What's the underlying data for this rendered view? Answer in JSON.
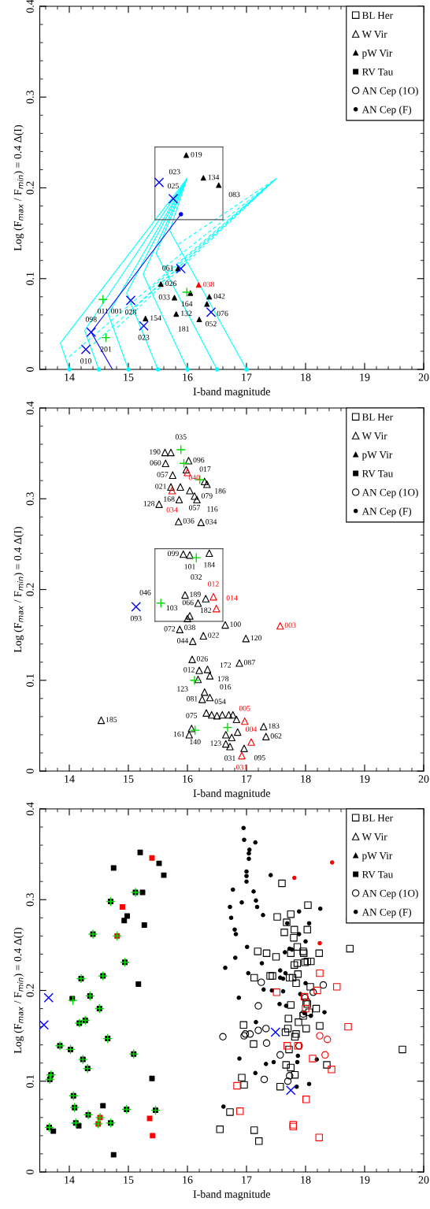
{
  "chart_data": [
    {
      "type": "scatter",
      "xlabel": "I-band magnitude",
      "ylabel": "Log (F$_{max}$ / F$_{min}$) = 0.4 Δ(I)",
      "xlim": [
        13.5,
        20
      ],
      "ylim": [
        0,
        0.4
      ],
      "xticks": [
        14,
        15,
        16,
        17,
        18,
        19,
        20
      ],
      "yticks": [
        0,
        0.1,
        0.2,
        0.3,
        0.4
      ],
      "legend": "top right",
      "series": [
        {
          "name": "BL Her",
          "marker": "square-open",
          "color": "#000000"
        },
        {
          "name": "W Vir",
          "marker": "triangle-open",
          "color": "#000000"
        },
        {
          "name": "pW Vir",
          "marker": "triangle",
          "color": "#000000",
          "x": [
            15.98,
            16.27,
            16.53,
            15.84,
            15.55,
            15.78,
            16.37,
            16.33,
            15.81,
            16.2,
            15.29,
            16.05
          ],
          "values": [
            0.236,
            0.211,
            0.203,
            0.111,
            0.094,
            0.079,
            0.08,
            0.072,
            0.061,
            0.055,
            0.056,
            0.084
          ]
        },
        {
          "name": "RV Tau",
          "marker": "square",
          "color": "#000000"
        },
        {
          "name": "AN Cep (1O)",
          "marker": "circle-open",
          "color": "#000000"
        },
        {
          "name": "AN Cep (F)",
          "marker": "circle",
          "color": "#000000"
        },
        {
          "type": "line",
          "color": "#00ffff",
          "line_style": "solid",
          "x": [
            14.0,
            13.85,
            15.99
          ],
          "values": [
            0,
            0.029,
            0.21
          ]
        },
        {
          "type": "line",
          "color": "#00ffff",
          "line_style": "solid",
          "x": [
            14.5,
            14.26,
            15.99
          ],
          "values": [
            0,
            0.043,
            0.21
          ]
        },
        {
          "type": "line",
          "color": "#00ffff",
          "line_style": "solid",
          "x": [
            15.0,
            14.66,
            15.99
          ],
          "values": [
            0,
            0.061,
            0.21
          ]
        },
        {
          "type": "line",
          "color": "#00ffff",
          "line_style": "solid",
          "x": [
            15.5,
            14.97,
            15.99
          ],
          "values": [
            0,
            0.084,
            0.21
          ]
        },
        {
          "type": "line",
          "color": "#00ffff",
          "line_style": "solid",
          "x": [
            16.0,
            15.25,
            15.99
          ],
          "values": [
            0,
            0.105,
            0.21
          ]
        },
        {
          "type": "line",
          "color": "#00ffff",
          "line_style": "solid",
          "x": [
            16.5,
            15.47,
            15.99
          ],
          "values": [
            0,
            0.128,
            0.21
          ]
        },
        {
          "type": "line",
          "color": "#00ffff",
          "line_style": "solid",
          "x": [
            17.0,
            15.7,
            15.99
          ],
          "values": [
            0,
            0.153,
            0.21
          ]
        },
        {
          "type": "line",
          "color": "#00ffff",
          "line_style": "dashed",
          "x": [
            14.0,
            17.5
          ],
          "values": [
            0.014,
            0.21
          ]
        },
        {
          "type": "line",
          "color": "#00ffff",
          "line_style": "dashed",
          "x": [
            14.41,
            17.5
          ],
          "values": [
            0.028,
            0.21
          ]
        },
        {
          "type": "line",
          "color": "#00ffff",
          "line_style": "dashed",
          "x": [
            14.81,
            17.5
          ],
          "values": [
            0.046,
            0.21
          ]
        },
        {
          "type": "line",
          "color": "#00ffff",
          "line_style": "dashed",
          "x": [
            15.12,
            17.5
          ],
          "values": [
            0.069,
            0.21
          ]
        },
        {
          "type": "line",
          "color": "#00ffff",
          "line_style": "dashed",
          "x": [
            15.4,
            17.5
          ],
          "values": [
            0.09,
            0.21
          ]
        },
        {
          "type": "line",
          "color": "#00ffff",
          "line_style": "dashed",
          "x": [
            15.62,
            17.5
          ],
          "values": [
            0.113,
            0.21
          ]
        },
        {
          "type": "line",
          "color": "#00ffff",
          "line_style": "dashed",
          "x": [
            15.85,
            17.5
          ],
          "values": [
            0.138,
            0.21
          ]
        },
        {
          "type": "scatter",
          "marker": "circle",
          "color": "#00ffff",
          "x": [
            14.0,
            14.5,
            15.0,
            15.5,
            16.0,
            16.5,
            17.0
          ],
          "values": [
            0,
            0,
            0,
            0,
            0,
            0,
            0
          ]
        },
        {
          "type": "line",
          "color": "#0000ff",
          "line_style": "solid",
          "x": [
            14.73,
            14.37,
            15.89
          ],
          "values": [
            0,
            0.041,
            0.171
          ]
        },
        {
          "type": "scatter",
          "marker": "circle",
          "color": "#0000ff",
          "x": [
            15.89
          ],
          "values": [
            0.171
          ]
        },
        {
          "type": "line",
          "color": "#555555",
          "line_style": "solid",
          "x": [
            15.45,
            16.6
          ],
          "values": [
            0.165,
            0.165
          ]
        },
        {
          "type": "line",
          "color": "#555555",
          "line_style": "solid",
          "x": [
            16.6,
            16.6
          ],
          "values": [
            0.165,
            0.245
          ]
        },
        {
          "type": "line",
          "color": "#555555",
          "line_style": "solid",
          "x": [
            16.6,
            15.45
          ],
          "values": [
            0.245,
            0.245
          ]
        },
        {
          "type": "line",
          "color": "#555555",
          "line_style": "solid",
          "x": [
            15.45,
            15.45
          ],
          "values": [
            0.245,
            0.165
          ]
        },
        {
          "marker": "triangle",
          "color": "#ff0000",
          "x": [
            16.19
          ],
          "values": [
            0.093
          ]
        },
        {
          "marker": "cross",
          "color": "#00dd00",
          "x": [
            15.99,
            14.57,
            14.62
          ],
          "values": [
            0.085,
            0.077,
            0.035
          ]
        },
        {
          "marker": "x",
          "color": "#0000ff",
          "x": [
            15.52,
            15.76,
            15.89,
            16.4,
            15.04,
            15.26,
            14.37,
            14.28
          ],
          "values": [
            0.206,
            0.188,
            0.111,
            0.063,
            0.076,
            0.048,
            0.041,
            0.022
          ]
        }
      ],
      "annotations": [
        {
          "text": "019",
          "x": 15.98,
          "y": 0.236
        },
        {
          "text": "134",
          "x": 16.27,
          "y": 0.211
        },
        {
          "text": "083",
          "x": 16.53,
          "y": 0.203
        },
        {
          "text": "023",
          "x": 15.52,
          "y": 0.206
        },
        {
          "text": "025",
          "x": 15.76,
          "y": 0.188
        },
        {
          "text": "061",
          "x": 15.84,
          "y": 0.111
        },
        {
          "text": "026",
          "x": 15.55,
          "y": 0.094
        },
        {
          "text": "038",
          "x": 16.19,
          "y": 0.093
        },
        {
          "text": "033",
          "x": 15.78,
          "y": 0.079
        },
        {
          "text": "164",
          "x": 15.99,
          "y": 0.085
        },
        {
          "text": "042",
          "x": 16.37,
          "y": 0.08
        },
        {
          "text": "076",
          "x": 16.33,
          "y": 0.072
        },
        {
          "text": "052",
          "x": 16.4,
          "y": 0.063
        },
        {
          "text": "132",
          "x": 15.81,
          "y": 0.061
        },
        {
          "text": "181",
          "x": 16.2,
          "y": 0.055
        },
        {
          "text": "154",
          "x": 15.29,
          "y": 0.056
        },
        {
          "text": "023",
          "x": 15.26,
          "y": 0.048
        },
        {
          "text": "028",
          "x": 15.04,
          "y": 0.076
        },
        {
          "text": "011",
          "x": 14.57,
          "y": 0.077
        },
        {
          "text": "001",
          "x": 14.8,
          "y": 0.077
        },
        {
          "text": "098",
          "x": 14.37,
          "y": 0.041
        },
        {
          "text": "201",
          "x": 14.62,
          "y": 0.035
        },
        {
          "text": "010",
          "x": 14.28,
          "y": 0.022
        }
      ]
    },
    {
      "type": "scatter",
      "xlabel": "I-band magnitude",
      "ylabel": "Log (F$_{max}$ / F$_{min}$) = 0.4 Δ(I)",
      "xlim": [
        13.5,
        20
      ],
      "ylim": [
        0,
        0.4
      ],
      "xticks": [
        14,
        15,
        16,
        17,
        18,
        19,
        20
      ],
      "yticks": [
        0,
        0.1,
        0.2,
        0.3,
        0.4
      ],
      "legend": "top right",
      "series": [
        {
          "name": "BL Her",
          "marker": "square-open",
          "color": "#000000"
        },
        {
          "name": "W Vir",
          "marker": "triangle-open",
          "color": "#000000",
          "x": [
            15.62,
            15.72,
            15.63,
            16.02,
            15.98,
            15.75,
            16.29,
            16.33,
            15.72,
            15.88,
            16.04,
            16.12,
            15.86,
            16.16,
            15.52,
            15.85,
            16.23,
            15.93,
            16.04,
            16.37,
            15.96,
            16.18,
            16.31,
            16.04,
            16.0,
            16.64,
            15.87,
            16.27,
            16.09,
            16.99,
            16.08,
            16.88,
            16.2,
            16.34,
            16.38,
            16.18,
            16.29,
            16.38,
            16.25,
            14.54,
            16.32,
            16.41,
            16.5,
            16.59,
            16.7,
            16.77,
            16.83,
            17.29,
            17.33,
            16.96,
            16.65,
            16.72,
            16.07,
            16.03,
            16.65,
            16.75,
            16.85
          ],
          "values": [
            0.351,
            0.351,
            0.339,
            0.342,
            0.332,
            0.326,
            0.319,
            0.316,
            0.313,
            0.313,
            0.309,
            0.303,
            0.299,
            0.299,
            0.294,
            0.275,
            0.274,
            0.239,
            0.238,
            0.24,
            0.194,
            0.185,
            0.19,
            0.171,
            0.168,
            0.161,
            0.156,
            0.149,
            0.143,
            0.146,
            0.123,
            0.119,
            0.111,
            0.112,
            0.105,
            0.101,
            0.087,
            0.081,
            0.079,
            0.056,
            0.064,
            0.062,
            0.061,
            0.062,
            0.062,
            0.062,
            0.057,
            0.049,
            0.038,
            0.025,
            0.03,
            0.027,
            0.047,
            0.04,
            0.04,
            0.037,
            0.043
          ]
        },
        {
          "name": "pW Vir",
          "marker": "triangle",
          "color": "#000000"
        },
        {
          "name": "RV Tau",
          "marker": "square",
          "color": "#000000"
        },
        {
          "name": "AN Cep (1O)",
          "marker": "circle-open",
          "color": "#000000"
        },
        {
          "name": "AN Cep (F)",
          "marker": "circle",
          "color": "#000000"
        },
        {
          "type": "line",
          "color": "#555555",
          "line_style": "solid",
          "x": [
            15.45,
            16.6
          ],
          "values": [
            0.165,
            0.165
          ]
        },
        {
          "type": "line",
          "color": "#555555",
          "line_style": "solid",
          "x": [
            16.6,
            16.6
          ],
          "values": [
            0.165,
            0.245
          ]
        },
        {
          "type": "line",
          "color": "#555555",
          "line_style": "solid",
          "x": [
            16.6,
            15.45
          ],
          "values": [
            0.245,
            0.245
          ]
        },
        {
          "type": "line",
          "color": "#555555",
          "line_style": "solid",
          "x": [
            15.45,
            15.45
          ],
          "values": [
            0.245,
            0.165
          ]
        },
        {
          "marker": "triangle-open",
          "color": "#ff0000",
          "x": [
            16.0,
            15.74,
            16.44,
            16.49,
            17.57,
            16.97,
            17.08,
            16.92
          ],
          "values": [
            0.329,
            0.309,
            0.192,
            0.179,
            0.16,
            0.055,
            0.032,
            0.017
          ]
        },
        {
          "marker": "cross",
          "color": "#00dd00",
          "x": [
            15.89,
            15.94,
            16.21,
            16.15,
            15.55,
            16.12,
            16.68,
            16.13
          ],
          "values": [
            0.354,
            0.339,
            0.321,
            0.235,
            0.185,
            0.1,
            0.048,
            0.045
          ]
        },
        {
          "marker": "x",
          "color": "#0000ff",
          "x": [
            15.13
          ],
          "values": [
            0.181
          ]
        }
      ],
      "annotations": [
        {
          "text": "190",
          "x": 15.62,
          "y": 0.351
        },
        {
          "text": "060",
          "x": 15.63,
          "y": 0.339
        },
        {
          "text": "096",
          "x": 16.02,
          "y": 0.342
        },
        {
          "text": "017",
          "x": 15.98,
          "y": 0.332
        },
        {
          "text": "057",
          "x": 15.75,
          "y": 0.326
        },
        {
          "text": "186",
          "x": 16.29,
          "y": 0.319
        },
        {
          "text": "079",
          "x": 16.33,
          "y": 0.316
        },
        {
          "text": "021",
          "x": 15.72,
          "y": 0.313
        },
        {
          "text": "057",
          "x": 16.12,
          "y": 0.303
        },
        {
          "text": "168",
          "x": 15.86,
          "y": 0.299
        },
        {
          "text": "116",
          "x": 16.16,
          "y": 0.299
        },
        {
          "text": "128",
          "x": 15.52,
          "y": 0.294
        },
        {
          "text": "036",
          "x": 15.85,
          "y": 0.275
        },
        {
          "text": "034",
          "x": 16.23,
          "y": 0.274
        },
        {
          "text": "099",
          "x": 15.93,
          "y": 0.239
        },
        {
          "text": "101",
          "x": 16.04,
          "y": 0.238
        },
        {
          "text": "184",
          "x": 16.37,
          "y": 0.24
        },
        {
          "text": "189",
          "x": 15.96,
          "y": 0.194
        },
        {
          "text": "066",
          "x": 16.18,
          "y": 0.185
        },
        {
          "text": "182",
          "x": 16.31,
          "y": 0.19
        },
        {
          "text": "038",
          "x": 16.04,
          "y": 0.171
        },
        {
          "text": "103",
          "x": 16.0,
          "y": 0.168
        },
        {
          "text": "100",
          "x": 16.64,
          "y": 0.161
        },
        {
          "text": "072",
          "x": 15.87,
          "y": 0.156
        },
        {
          "text": "022",
          "x": 16.27,
          "y": 0.149
        },
        {
          "text": "044",
          "x": 16.09,
          "y": 0.143
        },
        {
          "text": "120",
          "x": 16.99,
          "y": 0.146
        },
        {
          "text": "026",
          "x": 16.08,
          "y": 0.123
        },
        {
          "text": "087",
          "x": 16.88,
          "y": 0.119
        },
        {
          "text": "012",
          "x": 16.2,
          "y": 0.111
        },
        {
          "text": "178",
          "x": 16.34,
          "y": 0.112
        },
        {
          "text": "172",
          "x": 16.38,
          "y": 0.105
        },
        {
          "text": "123",
          "x": 16.18,
          "y": 0.101
        },
        {
          "text": "054",
          "x": 16.29,
          "y": 0.087
        },
        {
          "text": "016",
          "x": 16.38,
          "y": 0.081
        },
        {
          "text": "081",
          "x": 16.25,
          "y": 0.079
        },
        {
          "text": "185",
          "x": 14.54,
          "y": 0.056
        },
        {
          "text": "183",
          "x": 17.29,
          "y": 0.049
        },
        {
          "text": "062",
          "x": 17.33,
          "y": 0.038
        },
        {
          "text": "095",
          "x": 16.96,
          "y": 0.025
        },
        {
          "text": "123",
          "x": 16.65,
          "y": 0.03
        },
        {
          "text": "031",
          "x": 16.72,
          "y": 0.027
        },
        {
          "text": "075",
          "x": 16.07,
          "y": 0.047
        },
        {
          "text": "161",
          "x": 16.03,
          "y": 0.04
        },
        {
          "text": "040",
          "x": 16.0,
          "y": 0.329
        },
        {
          "text": "034",
          "x": 15.74,
          "y": 0.309
        },
        {
          "text": "012",
          "x": 16.44,
          "y": 0.192
        },
        {
          "text": "014",
          "x": 16.49,
          "y": 0.179
        },
        {
          "text": "003",
          "x": 17.57,
          "y": 0.16
        },
        {
          "text": "005",
          "x": 16.97,
          "y": 0.055
        },
        {
          "text": "004",
          "x": 17.08,
          "y": 0.032
        },
        {
          "text": "031",
          "x": 16.92,
          "y": 0.017
        },
        {
          "text": "035",
          "x": 15.89,
          "y": 0.354
        },
        {
          "text": "032",
          "x": 16.15,
          "y": 0.235
        },
        {
          "text": "046",
          "x": 15.55,
          "y": 0.185
        },
        {
          "text": "140",
          "x": 16.13,
          "y": 0.045
        },
        {
          "text": "093",
          "x": 15.13,
          "y": 0.181
        }
      ]
    },
    {
      "type": "scatter",
      "xlabel": "I-band magnitude",
      "ylabel": "Log (F$_{max}$ / F$_{min}$) = 0.4 Δ(I)",
      "xlim": [
        13.5,
        20
      ],
      "ylim": [
        0,
        0.4
      ],
      "xticks": [
        14,
        15,
        16,
        17,
        18,
        19,
        20
      ],
      "yticks": [
        0,
        0.1,
        0.2,
        0.3,
        0.4
      ],
      "legend": "top right",
      "series": [
        {
          "name": "BL Her",
          "marker": "square-open",
          "color": "#000000",
          "x": [
            17.6,
            18.04,
            17.75,
            17.52,
            17.68,
            17.81,
            18.03,
            17.64,
            17.8,
            17.86,
            17.19,
            17.34,
            17.75,
            17.96,
            17.97,
            18.23,
            17.5,
            17.81,
            17.86,
            17.99,
            18.03,
            18.09,
            17.87,
            17.13,
            17.4,
            17.44,
            17.73,
            17.78,
            17.84,
            18.08,
            18.01,
            18.03,
            17.75,
            18.18,
            18.06,
            17.96,
            17.71,
            17.88,
            16.95,
            18.01,
            18.24,
            17.7,
            17.66,
            17.84,
            17.82,
            17.12,
            17.72,
            19.64,
            17.67,
            17.75,
            18.36,
            16.92,
            17.82,
            16.96,
            17.57,
            18.75,
            16.72,
            16.55,
            17.13,
            17.21
          ],
          "values": [
            0.318,
            0.294,
            0.284,
            0.281,
            0.275,
            0.267,
            0.267,
            0.264,
            0.258,
            0.248,
            0.243,
            0.241,
            0.241,
            0.243,
            0.241,
            0.241,
            0.237,
            0.228,
            0.23,
            0.231,
            0.232,
            0.232,
            0.218,
            0.214,
            0.216,
            0.216,
            0.214,
            0.214,
            0.208,
            0.204,
            0.187,
            0.185,
            0.184,
            0.18,
            0.176,
            0.172,
            0.169,
            0.165,
            0.162,
            0.158,
            0.161,
            0.158,
            0.154,
            0.152,
            0.149,
            0.141,
            0.135,
            0.135,
            0.118,
            0.115,
            0.118,
            0.104,
            0.107,
            0.096,
            0.094,
            0.246,
            0.066,
            0.047,
            0.046,
            0.034
          ]
        },
        {
          "name": "W Vir",
          "marker": "triangle-open",
          "color": "#000000"
        },
        {
          "name": "pW Vir",
          "marker": "triangle",
          "color": "#000000"
        },
        {
          "name": "RV Tau",
          "marker": "square",
          "color": "#000000",
          "x": [
            15.2,
            15.52,
            14.75,
            15.6,
            15.12,
            15.24,
            14.7,
            14.98,
            14.93,
            15.27,
            14.4,
            14.94,
            14.57,
            14.2,
            15.17,
            14.05,
            14.35,
            14.51,
            14.17,
            14.27,
            14.65,
            13.84,
            14.02,
            15.09,
            14.23,
            14.31,
            13.69,
            13.67,
            15.4,
            14.07,
            14.57,
            14.09,
            14.97,
            15.46,
            14.32,
            14.11,
            14.16,
            14.7,
            13.66,
            13.73,
            14.75
          ],
          "values": [
            0.352,
            0.34,
            0.335,
            0.327,
            0.308,
            0.308,
            0.298,
            0.282,
            0.277,
            0.272,
            0.262,
            0.231,
            0.216,
            0.213,
            0.207,
            0.191,
            0.194,
            0.18,
            0.164,
            0.167,
            0.147,
            0.139,
            0.135,
            0.13,
            0.124,
            0.114,
            0.107,
            0.102,
            0.103,
            0.084,
            0.073,
            0.071,
            0.069,
            0.068,
            0.063,
            0.054,
            0.051,
            0.054,
            0.049,
            0.045,
            0.019
          ]
        },
        {
          "name": "AN Cep (1O)",
          "marker": "circle-open",
          "color": "#000000",
          "x": [
            17.25,
            18.3,
            18.13,
            17.2,
            17.96,
            17.99,
            16.6,
            16.96,
            16.98,
            17.06,
            17.2,
            17.33,
            17.34,
            17.89,
            17.57,
            17.73,
            17.7,
            17.3
          ],
          "values": [
            0.209,
            0.206,
            0.198,
            0.183,
            0.174,
            0.192,
            0.149,
            0.15,
            0.152,
            0.152,
            0.156,
            0.158,
            0.142,
            0.139,
            0.129,
            0.106,
            0.1,
            0.102
          ]
        },
        {
          "name": "AN Cep (F)",
          "marker": "circle",
          "color": "#000000",
          "x": [
            16.95,
            16.96,
            17.15,
            17.05,
            17.04,
            17.04,
            17.0,
            17.0,
            17.0,
            17.41,
            16.77,
            17.12,
            16.92,
            17.16,
            16.72,
            17.18,
            16.74,
            17.28,
            17.89,
            18.25,
            17.69,
            18.06,
            16.8,
            16.82,
            17.89,
            18.0,
            17.01,
            17.73,
            17.77,
            17.65,
            16.81,
            17.26,
            16.64,
            17.03,
            17.57,
            17.66,
            17.57,
            17.62,
            18.0,
            17.29,
            17.43,
            17.62,
            17.91,
            16.87,
            17.56,
            17.67,
            18.09,
            18.32,
            17.98,
            17.16,
            16.88,
            17.33,
            17.46,
            17.87,
            17.86,
            18.19,
            17.15,
            18.06,
            17.85,
            16.61,
            18.72
          ],
          "values": [
            0.379,
            0.366,
            0.363,
            0.355,
            0.351,
            0.345,
            0.331,
            0.326,
            0.32,
            0.327,
            0.311,
            0.309,
            0.297,
            0.299,
            0.292,
            0.292,
            0.28,
            0.283,
            0.287,
            0.29,
            0.274,
            0.274,
            0.267,
            0.262,
            0.262,
            0.254,
            0.248,
            0.246,
            0.245,
            0.242,
            0.236,
            0.23,
            0.225,
            0.219,
            0.222,
            0.219,
            0.214,
            0.213,
            0.208,
            0.201,
            0.2,
            0.199,
            0.196,
            0.192,
            0.185,
            0.183,
            0.172,
            0.176,
            0.175,
            0.165,
            0.125,
            0.119,
            0.121,
            0.128,
            0.121,
            0.124,
            0.109,
            0.097,
            0.094,
            0.072,
            0.279
          ]
        },
        {
          "marker": "square",
          "color": "#ff0000",
          "x": [
            15.4,
            14.9,
            14.81,
            14.52,
            15.36,
            14.49,
            15.41
          ],
          "values": [
            0.346,
            0.292,
            0.26,
            0.06,
            0.059,
            0.053,
            0.04
          ]
        },
        {
          "marker": "square-open",
          "color": "#ff0000",
          "x": [
            18.24,
            18.53,
            17.51,
            18.2,
            17.98,
            18.0,
            18.72,
            17.69,
            17.87,
            18.12,
            18.44,
            16.84,
            16.89,
            18.01,
            17.79,
            17.79,
            18.23
          ],
          "values": [
            0.219,
            0.204,
            0.198,
            0.2,
            0.193,
            0.18,
            0.16,
            0.139,
            0.139,
            0.125,
            0.113,
            0.095,
            0.067,
            0.08,
            0.052,
            0.05,
            0.038
          ]
        },
        {
          "marker": "circle-open",
          "color": "#ff0000",
          "x": [
            18.24,
            18.37,
            18.33
          ],
          "values": [
            0.15,
            0.146,
            0.129
          ]
        },
        {
          "marker": "circle",
          "color": "#ff0000",
          "x": [
            18.45,
            17.81,
            18.24
          ],
          "values": [
            0.341,
            0.324,
            0.252
          ]
        },
        {
          "marker": "cross",
          "color": "#00dd00",
          "x": [
            15.12,
            14.7,
            14.4,
            14.81,
            14.94,
            14.57,
            14.2,
            14.06,
            14.35,
            14.51,
            14.17,
            14.27,
            14.65,
            13.84,
            14.02,
            15.09,
            14.23,
            14.31,
            13.69,
            13.67,
            14.07,
            14.09,
            14.97,
            15.46,
            14.32,
            14.52,
            14.11,
            14.49,
            14.7,
            13.66
          ],
          "values": [
            0.308,
            0.298,
            0.262,
            0.26,
            0.231,
            0.216,
            0.213,
            0.189,
            0.194,
            0.18,
            0.164,
            0.167,
            0.147,
            0.139,
            0.135,
            0.13,
            0.124,
            0.114,
            0.107,
            0.102,
            0.084,
            0.071,
            0.069,
            0.068,
            0.063,
            0.06,
            0.054,
            0.053,
            0.054,
            0.049
          ]
        },
        {
          "marker": "x",
          "color": "#0000ff",
          "x": [
            13.65,
            13.57,
            17.49,
            17.75
          ],
          "values": [
            0.192,
            0.162,
            0.154,
            0.09
          ]
        }
      ]
    }
  ]
}
